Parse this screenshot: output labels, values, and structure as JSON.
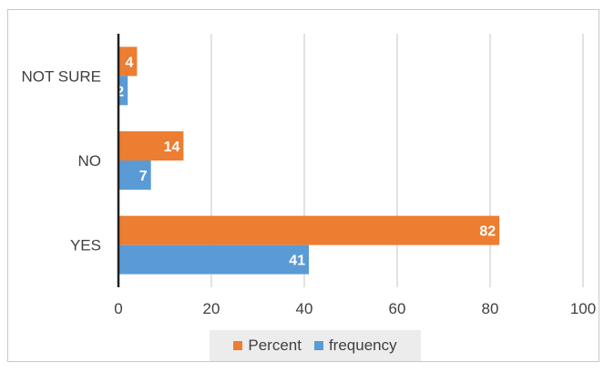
{
  "chart_data": {
    "type": "bar",
    "orientation": "horizontal",
    "categories": [
      "NOT SURE",
      "NO",
      "YES"
    ],
    "series": [
      {
        "name": "Percent",
        "values": [
          4,
          14,
          82
        ],
        "color": "#ED7D31"
      },
      {
        "name": "frequency",
        "values": [
          2,
          7,
          41
        ],
        "color": "#5B9BD5"
      }
    ],
    "xlim": [
      0,
      100
    ],
    "x_ticks": [
      0,
      20,
      40,
      60,
      80,
      100
    ],
    "grid": true,
    "legend": "bottom",
    "data_labels": true
  },
  "legend": {
    "items": [
      {
        "label": "Percent",
        "color": "#ED7D31"
      },
      {
        "label": "frequency",
        "color": "#5B9BD5"
      }
    ]
  }
}
